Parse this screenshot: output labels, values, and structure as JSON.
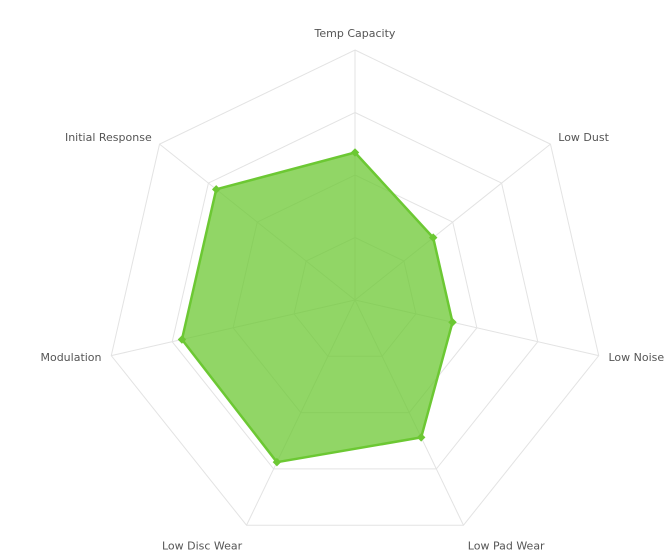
{
  "chart_data": {
    "type": "radar",
    "categories": [
      "Temp Capacity",
      "Low Dust",
      "Low Noise",
      "Low Pad Wear",
      "Low Disc Wear",
      "Modulation",
      "Initial Response"
    ],
    "values": [
      59,
      40,
      40,
      61,
      72,
      71,
      71
    ],
    "color": "#6cc833",
    "ylim": [
      0,
      100
    ],
    "yticks": [
      0,
      25,
      50,
      75,
      100
    ],
    "grid": true
  }
}
